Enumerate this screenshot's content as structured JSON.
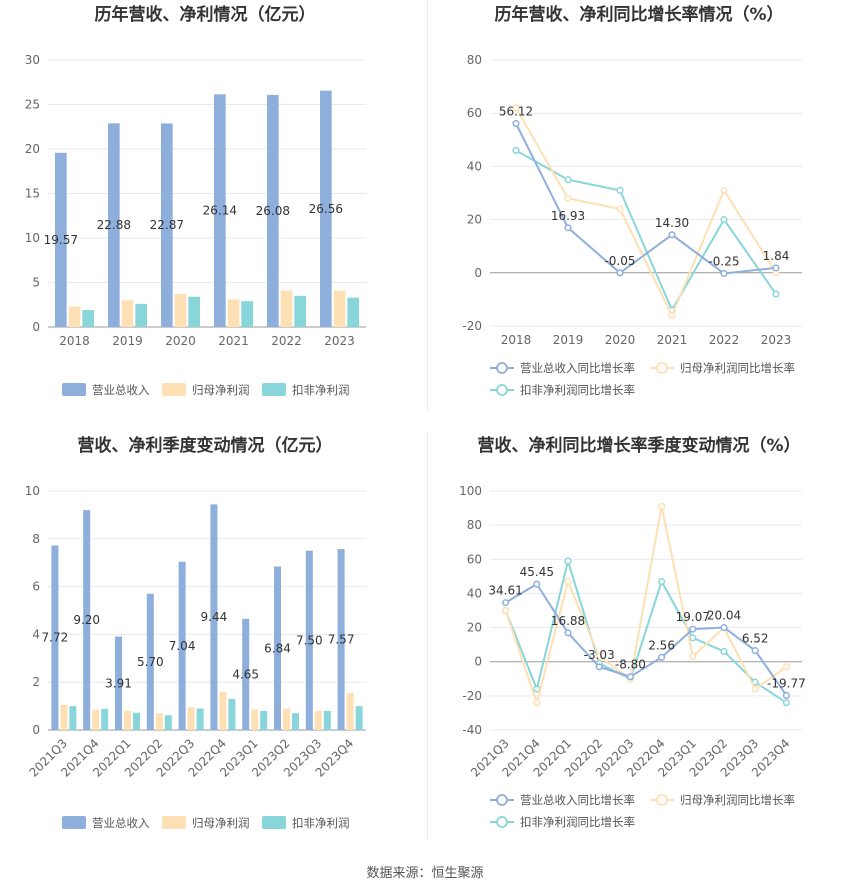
{
  "source_text": "数据来源：恒生聚源",
  "chart_data": [
    {
      "id": "annual-revenue",
      "type": "bar",
      "title": "历年营收、净利情况（亿元）",
      "categories": [
        "2018",
        "2019",
        "2020",
        "2021",
        "2022",
        "2023"
      ],
      "ylim": [
        0,
        30
      ],
      "yticks": [
        "0",
        "5",
        "10",
        "15",
        "20",
        "25",
        "30"
      ],
      "series": [
        {
          "name": "营业总收入",
          "color": "#8eafdc",
          "values": [
            19.57,
            22.88,
            22.87,
            26.14,
            26.08,
            26.56
          ],
          "labels": [
            "19.57",
            "22.88",
            "22.87",
            "26.14",
            "26.08",
            "26.56"
          ]
        },
        {
          "name": "归母净利润",
          "color": "#fde0b4",
          "values": [
            2.3,
            3.0,
            3.7,
            3.1,
            4.1,
            4.1
          ]
        },
        {
          "name": "扣非净利润",
          "color": "#88d6d9",
          "values": [
            1.9,
            2.6,
            3.4,
            2.9,
            3.5,
            3.3
          ]
        }
      ],
      "grid": true,
      "legend": "bottom"
    },
    {
      "id": "annual-growth",
      "type": "line",
      "title": "历年营收、净利同比增长率情况（%）",
      "categories": [
        "2018",
        "2019",
        "2020",
        "2021",
        "2022",
        "2023"
      ],
      "ylim": [
        -20,
        80
      ],
      "yticks": [
        "-20",
        "0",
        "20",
        "40",
        "60",
        "80"
      ],
      "series": [
        {
          "name": "营业总收入同比增长率",
          "color": "#8eafdc",
          "values": [
            56.12,
            16.93,
            -0.05,
            14.3,
            -0.25,
            1.84
          ],
          "labels": [
            "56.12",
            "16.93",
            "-0.05",
            "14.30",
            "-0.25",
            "1.84"
          ]
        },
        {
          "name": "归母净利润同比增长率",
          "color": "#fde0b4",
          "values": [
            62,
            28,
            24,
            -16,
            31,
            0
          ]
        },
        {
          "name": "扣非净利润同比增长率",
          "color": "#88d6d9",
          "values": [
            46,
            35,
            31,
            -14,
            20,
            -8
          ]
        }
      ],
      "grid": true,
      "legend": "bottom"
    },
    {
      "id": "quarter-revenue",
      "type": "bar",
      "title": "营收、净利季度变动情况（亿元）",
      "categories": [
        "2021Q3",
        "2021Q4",
        "2022Q1",
        "2022Q2",
        "2022Q3",
        "2022Q4",
        "2023Q1",
        "2023Q2",
        "2023Q3",
        "2023Q4"
      ],
      "ylim": [
        0,
        10
      ],
      "yticks": [
        "0",
        "2",
        "4",
        "6",
        "8",
        "10"
      ],
      "series": [
        {
          "name": "营业总收入",
          "color": "#8eafdc",
          "values": [
            7.72,
            9.2,
            3.91,
            5.7,
            7.04,
            9.44,
            4.65,
            6.84,
            7.5,
            7.57
          ],
          "labels": [
            "7.72",
            "9.20",
            "3.91",
            "5.70",
            "7.04",
            "9.44",
            "4.65",
            "6.84",
            "7.50",
            "7.57"
          ]
        },
        {
          "name": "归母净利润",
          "color": "#fde0b4",
          "values": [
            1.05,
            0.85,
            0.8,
            0.7,
            0.95,
            1.6,
            0.85,
            0.9,
            0.8,
            1.55
          ]
        },
        {
          "name": "扣非净利润",
          "color": "#88d6d9",
          "values": [
            1.0,
            0.88,
            0.72,
            0.62,
            0.9,
            1.3,
            0.8,
            0.7,
            0.8,
            1.0
          ]
        }
      ],
      "grid": true,
      "legend": "bottom"
    },
    {
      "id": "quarter-growth",
      "type": "line",
      "title": "营收、净利同比增长率季度变动情况（%）",
      "categories": [
        "2021Q3",
        "2021Q4",
        "2022Q1",
        "2022Q2",
        "2022Q3",
        "2022Q4",
        "2023Q1",
        "2023Q2",
        "2023Q3",
        "2023Q4"
      ],
      "ylim": [
        -40,
        100
      ],
      "yticks": [
        "-40",
        "-20",
        "0",
        "20",
        "40",
        "60",
        "80",
        "100"
      ],
      "series": [
        {
          "name": "营业总收入同比增长率",
          "color": "#8eafdc",
          "values": [
            34.61,
            45.45,
            16.88,
            -3.03,
            -8.8,
            2.56,
            19.07,
            20.04,
            6.52,
            -19.77
          ],
          "labels": [
            "34.61",
            "45.45",
            "16.88",
            "-3.03",
            "-8.80",
            "2.56",
            "19.07",
            "20.04",
            "6.52",
            "-19.77"
          ]
        },
        {
          "name": "归母净利润同比增长率",
          "color": "#fde0b4",
          "values": [
            30,
            -24,
            47,
            3,
            -10,
            91,
            3,
            20,
            -16,
            -3
          ]
        },
        {
          "name": "扣非净利润同比增长率",
          "color": "#88d6d9",
          "values": [
            30,
            -16,
            59,
            -1,
            -10,
            47,
            14,
            6,
            -12,
            -24
          ]
        }
      ],
      "grid": true,
      "legend": "bottom"
    }
  ]
}
